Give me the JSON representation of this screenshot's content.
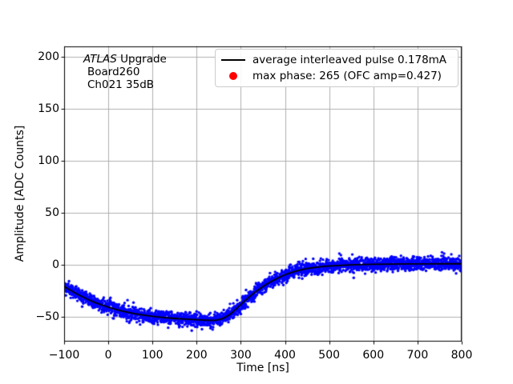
{
  "annotation": {
    "line1_italic": "ATLAS",
    "line1_rest": " Upgrade",
    "line2": "Board260",
    "line3": "Ch021 35dB"
  },
  "chart_data": {
    "type": "scatter",
    "title": "",
    "xlabel": "Time [ns]",
    "ylabel": "Amplitude [ADC Counts]",
    "xlim": [
      -100,
      800
    ],
    "ylim": [
      -73.8,
      210.3
    ],
    "xticks": [
      -100,
      0,
      100,
      200,
      300,
      400,
      500,
      600,
      700,
      800
    ],
    "xtick_labels": [
      "−100",
      "0",
      "100",
      "200",
      "300",
      "400",
      "500",
      "600",
      "700",
      "800"
    ],
    "yticks": [
      -50,
      0,
      50,
      100,
      150,
      200
    ],
    "ytick_labels": [
      "−50",
      "0",
      "50",
      "100",
      "150",
      "200"
    ],
    "grid": true,
    "grid_color": "#b0b0b0",
    "background": "#ffffff",
    "legend_position": "upper right",
    "legend": [
      {
        "swatch": "line",
        "color": "#000000",
        "label": "average interleaved pulse 0.178mA"
      },
      {
        "swatch": "dot",
        "color": "#ff0000",
        "label": "max phase: 265 (OFC amp=0.427)"
      }
    ],
    "series": [
      {
        "name": "interleaved pulse samples",
        "type": "scatter",
        "color": "#0000ff",
        "marker_radius": 1.7,
        "n_points": 2800,
        "noise_sigma": 3.3,
        "seed": 1337,
        "centered_on": "average pulse line"
      },
      {
        "name": "average interleaved pulse 0.178mA",
        "type": "line",
        "color": "#000000",
        "line_width": 1.8,
        "points": [
          [
            -100,
            -20.5
          ],
          [
            -90,
            -23.2
          ],
          [
            -80,
            -25.8
          ],
          [
            -70,
            -28.2
          ],
          [
            -60,
            -30.4
          ],
          [
            -50,
            -32.5
          ],
          [
            -40,
            -34.4
          ],
          [
            -30,
            -36.2
          ],
          [
            -20,
            -37.8
          ],
          [
            -10,
            -39.2
          ],
          [
            0,
            -40.6
          ],
          [
            15,
            -42.5
          ],
          [
            30,
            -44.2
          ],
          [
            45,
            -45.7
          ],
          [
            60,
            -47.0
          ],
          [
            80,
            -48.4
          ],
          [
            100,
            -49.5
          ],
          [
            125,
            -50.6
          ],
          [
            150,
            -51.5
          ],
          [
            175,
            -52.2
          ],
          [
            200,
            -52.8
          ],
          [
            215,
            -53.1
          ],
          [
            230,
            -53.3
          ],
          [
            242,
            -53.3
          ],
          [
            250,
            -52.8
          ],
          [
            258,
            -51.8
          ],
          [
            266,
            -50.2
          ],
          [
            274,
            -48.0
          ],
          [
            282,
            -45.3
          ],
          [
            290,
            -42.3
          ],
          [
            300,
            -38.2
          ],
          [
            310,
            -34.3
          ],
          [
            320,
            -30.5
          ],
          [
            330,
            -27.0
          ],
          [
            340,
            -24.0
          ],
          [
            350,
            -21.0
          ],
          [
            360,
            -18.3
          ],
          [
            370,
            -15.8
          ],
          [
            380,
            -13.6
          ],
          [
            390,
            -11.5
          ],
          [
            400,
            -9.6
          ],
          [
            412,
            -7.8
          ],
          [
            424,
            -6.2
          ],
          [
            436,
            -4.9
          ],
          [
            448,
            -3.8
          ],
          [
            460,
            -2.9
          ],
          [
            475,
            -2.1
          ],
          [
            490,
            -1.4
          ],
          [
            505,
            -1.0
          ],
          [
            520,
            -0.6
          ],
          [
            540,
            -0.2
          ],
          [
            560,
            0.1
          ],
          [
            580,
            0.35
          ],
          [
            600,
            0.55
          ],
          [
            640,
            0.75
          ],
          [
            680,
            0.9
          ],
          [
            720,
            0.95
          ],
          [
            760,
            1.0
          ],
          [
            800,
            1.0
          ]
        ]
      }
    ]
  }
}
